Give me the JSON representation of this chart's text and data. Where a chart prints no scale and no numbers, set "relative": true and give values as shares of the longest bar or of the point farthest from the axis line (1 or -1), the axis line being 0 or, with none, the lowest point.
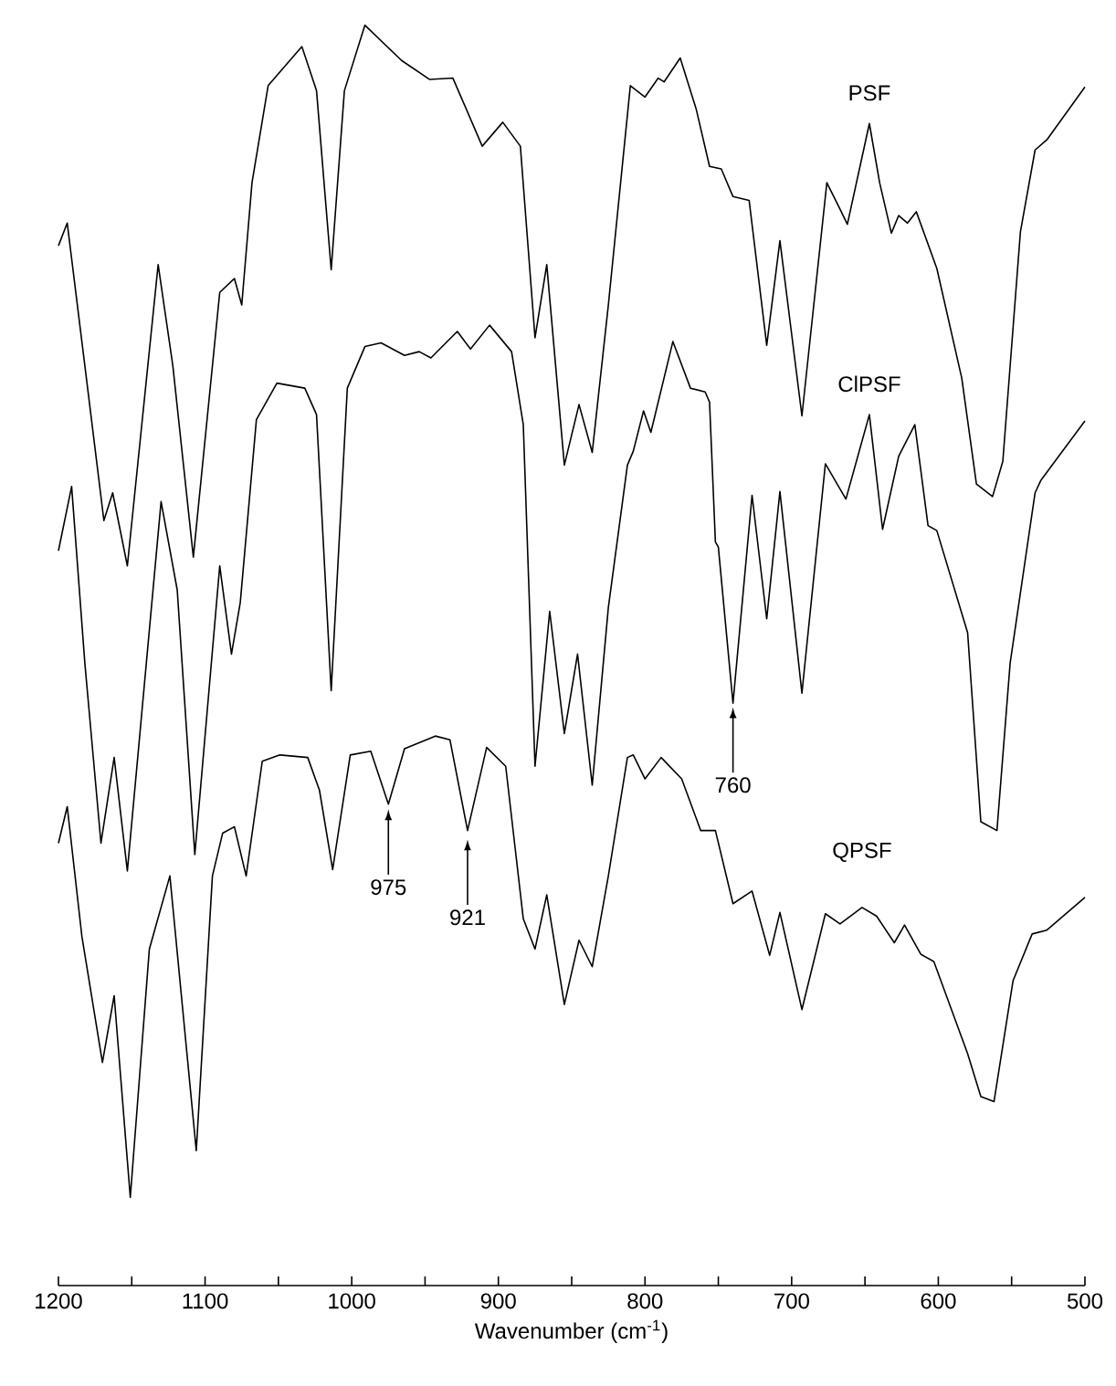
{
  "chart_data": {
    "type": "line",
    "relative": true,
    "xlabel": "Wavenumber (cm$^{-1}$)",
    "xlim": [
      1200,
      500
    ],
    "xticks": [
      1200,
      {
        "value": 1150,
        "label": null
      },
      1100,
      {
        "value": 1050,
        "label": null
      },
      1000,
      {
        "value": 950,
        "label": null
      },
      900,
      {
        "value": 850,
        "label": null
      },
      800,
      {
        "value": 750,
        "label": null
      },
      700,
      {
        "value": 650,
        "label": null
      },
      600,
      {
        "value": 550,
        "label": null
      },
      500
    ],
    "tick_labels": "x",
    "marker": "none",
    "line_style": "solid",
    "series": [
      {
        "name": "PSF",
        "color": "#000000",
        "x": [
          1200,
          1194,
          1182,
          1169,
          1163,
          1153,
          1132,
          1122,
          1108,
          1090,
          1080,
          1075,
          1068,
          1057,
          1034,
          1024,
          1014,
          1005,
          991,
          966,
          947,
          931,
          911,
          897,
          885,
          875,
          867,
          855,
          845,
          836,
          825,
          810,
          800,
          791,
          787,
          776,
          765,
          756,
          748,
          740,
          729,
          717,
          708,
          693,
          676,
          667,
          662,
          647,
          640,
          632,
          627,
          621,
          615,
          601,
          584,
          574,
          563,
          556,
          544,
          534,
          526,
          500
        ],
        "values": [
          0.825,
          0.843,
          0.73,
          0.607,
          0.629,
          0.571,
          0.81,
          0.73,
          0.578,
          0.788,
          0.799,
          0.778,
          0.875,
          0.952,
          0.983,
          0.948,
          0.806,
          0.948,
          1.0,
          0.972,
          0.957,
          0.958,
          0.904,
          0.923,
          0.904,
          0.752,
          0.81,
          0.651,
          0.699,
          0.661,
          0.778,
          0.952,
          0.943,
          0.958,
          0.955,
          0.974,
          0.933,
          0.888,
          0.886,
          0.864,
          0.861,
          0.746,
          0.829,
          0.69,
          0.875,
          0.854,
          0.842,
          0.922,
          0.875,
          0.835,
          0.849,
          0.843,
          0.852,
          0.807,
          0.72,
          0.636,
          0.626,
          0.654,
          0.836,
          0.901,
          0.909,
          0.951
        ]
      },
      {
        "name": "ClPSF",
        "color": "#000000",
        "x": [
          1200,
          1191,
          1182,
          1171,
          1162,
          1153,
          1130,
          1119,
          1107,
          1090,
          1082,
          1076,
          1065,
          1051,
          1032,
          1024,
          1014,
          1003,
          991,
          980,
          964,
          954,
          946,
          928,
          919,
          906,
          891,
          883,
          875,
          865,
          855,
          846,
          836,
          825,
          812,
          808,
          801,
          796,
          781,
          769,
          759,
          756,
          752,
          750,
          740,
          727,
          717,
          708,
          693,
          677,
          663,
          647,
          638,
          627,
          616,
          607,
          601,
          580,
          571,
          560,
          551,
          534,
          530,
          500
        ],
        "values": [
          0.583,
          0.634,
          0.494,
          0.351,
          0.419,
          0.329,
          0.622,
          0.552,
          0.342,
          0.571,
          0.501,
          0.542,
          0.687,
          0.716,
          0.712,
          0.691,
          0.472,
          0.712,
          0.745,
          0.748,
          0.738,
          0.741,
          0.736,
          0.757,
          0.743,
          0.762,
          0.741,
          0.683,
          0.412,
          0.535,
          0.438,
          0.501,
          0.397,
          0.538,
          0.651,
          0.662,
          0.694,
          0.677,
          0.749,
          0.712,
          0.709,
          0.701,
          0.59,
          0.586,
          0.462,
          0.627,
          0.529,
          0.63,
          0.47,
          0.652,
          0.624,
          0.691,
          0.6,
          0.658,
          0.683,
          0.603,
          0.599,
          0.518,
          0.368,
          0.361,
          0.494,
          0.629,
          0.639,
          0.686
        ]
      },
      {
        "name": "QPSF",
        "color": "#000000",
        "x": [
          1200,
          1194,
          1184,
          1170,
          1162,
          1151,
          1138,
          1124,
          1106,
          1095,
          1088,
          1080,
          1072,
          1061,
          1049,
          1030,
          1022,
          1013,
          1001,
          987,
          975,
          964,
          943,
          933,
          921,
          908,
          895,
          883,
          875,
          867,
          855,
          845,
          836,
          825,
          812,
          808,
          800,
          789,
          775,
          762,
          752,
          740,
          727,
          715,
          708,
          693,
          677,
          667,
          652,
          642,
          630,
          623,
          612,
          603,
          580,
          571,
          562,
          549,
          536,
          526,
          500
        ],
        "values": [
          0.351,
          0.38,
          0.277,
          0.177,
          0.23,
          0.07,
          0.267,
          0.325,
          0.107,
          0.325,
          0.359,
          0.364,
          0.325,
          0.416,
          0.421,
          0.419,
          0.393,
          0.33,
          0.421,
          0.424,
          0.382,
          0.426,
          0.436,
          0.433,
          0.361,
          0.427,
          0.412,
          0.291,
          0.267,
          0.31,
          0.223,
          0.274,
          0.253,
          0.325,
          0.419,
          0.421,
          0.402,
          0.419,
          0.402,
          0.361,
          0.361,
          0.303,
          0.313,
          0.262,
          0.296,
          0.219,
          0.295,
          0.287,
          0.3,
          0.293,
          0.272,
          0.286,
          0.263,
          0.257,
          0.184,
          0.15,
          0.146,
          0.242,
          0.279,
          0.282,
          0.308
        ]
      }
    ],
    "annotations": [
      {
        "text": "975",
        "x": 975,
        "y": 0.378
      },
      {
        "text": "921",
        "x": 921,
        "y": 0.354
      },
      {
        "text": "760",
        "x": 740,
        "y": 0.459
      }
    ]
  }
}
